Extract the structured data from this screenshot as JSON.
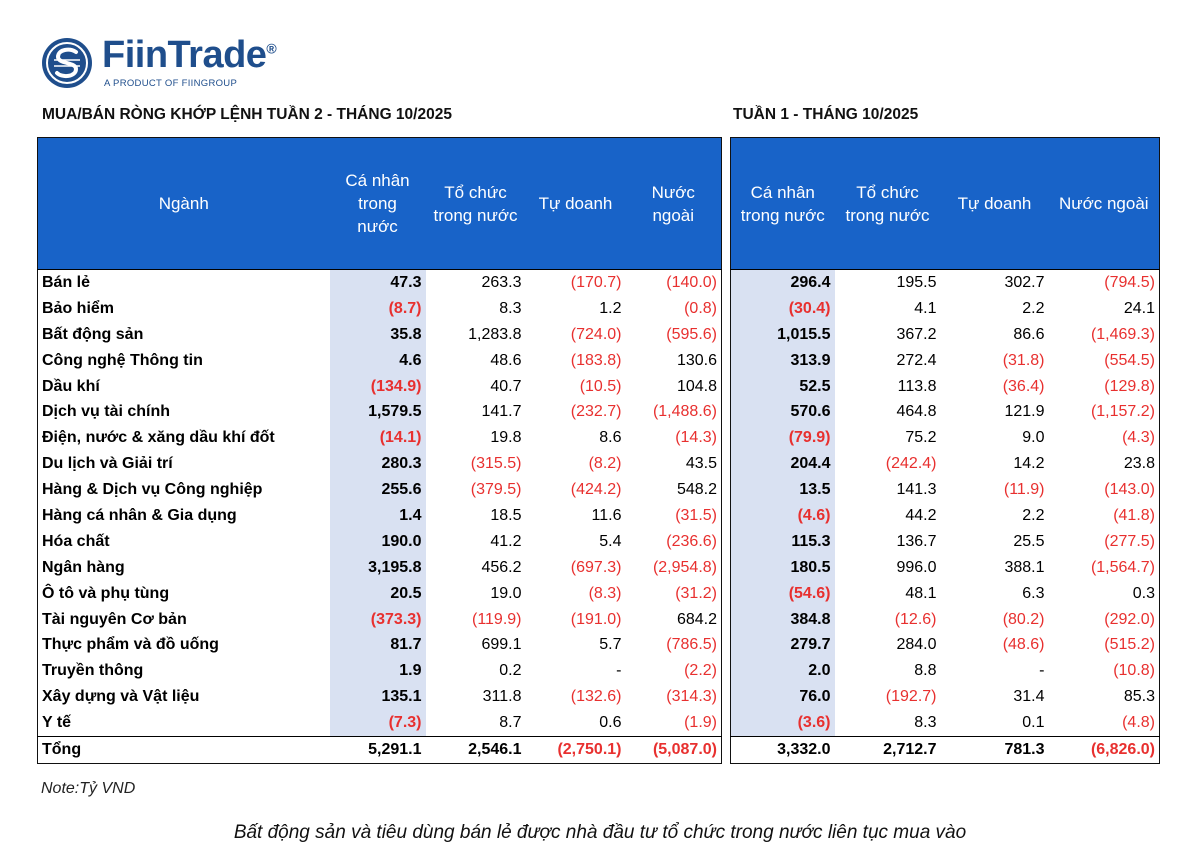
{
  "logo": {
    "name": "FiinTrade",
    "reg": "®",
    "sub": "A PRODUCT OF FIINGROUP",
    "brand_color": "#1f4e8c"
  },
  "left_title": "MUA/BÁN RÒNG KHỚP LỆNH TUẦN 2 - THÁNG 10/2025",
  "right_title": "TUẦN 1 - THÁNG 10/2025",
  "colors": {
    "header_blue": "#1863c8",
    "highlight": "#d9e1f2",
    "negative": "#e8302f"
  },
  "left_headers": [
    "Ngành",
    "Cá nhân\ntrong\nnước",
    "Tổ chức\ntrong nước",
    "Tự doanh",
    "Nước\nngoài"
  ],
  "right_headers": [
    "Cá nhân\ntrong nước",
    "Tổ chức\ntrong nước",
    "Tự doanh",
    "Nước ngoài"
  ],
  "rows": [
    {
      "sector": "Bán lẻ",
      "w2": [
        "47.3",
        "263.3",
        "(170.7)",
        "(140.0)"
      ],
      "w1": [
        "296.4",
        "195.5",
        "302.7",
        "(794.5)"
      ]
    },
    {
      "sector": "Bảo hiểm",
      "w2": [
        "(8.7)",
        "8.3",
        "1.2",
        "(0.8)"
      ],
      "w1": [
        "(30.4)",
        "4.1",
        "2.2",
        "24.1"
      ]
    },
    {
      "sector": "Bất động sản",
      "w2": [
        "35.8",
        "1,283.8",
        "(724.0)",
        "(595.6)"
      ],
      "w1": [
        "1,015.5",
        "367.2",
        "86.6",
        "(1,469.3)"
      ]
    },
    {
      "sector": "Công nghệ Thông tin",
      "w2": [
        "4.6",
        "48.6",
        "(183.8)",
        "130.6"
      ],
      "w1": [
        "313.9",
        "272.4",
        "(31.8)",
        "(554.5)"
      ]
    },
    {
      "sector": "Dầu khí",
      "w2": [
        "(134.9)",
        "40.7",
        "(10.5)",
        "104.8"
      ],
      "w1": [
        "52.5",
        "113.8",
        "(36.4)",
        "(129.8)"
      ]
    },
    {
      "sector": "Dịch vụ tài chính",
      "w2": [
        "1,579.5",
        "141.7",
        "(232.7)",
        "(1,488.6)"
      ],
      "w1": [
        "570.6",
        "464.8",
        "121.9",
        "(1,157.2)"
      ]
    },
    {
      "sector": "Điện, nước & xăng dầu khí đốt",
      "w2": [
        "(14.1)",
        "19.8",
        "8.6",
        "(14.3)"
      ],
      "w1": [
        "(79.9)",
        "75.2",
        "9.0",
        "(4.3)"
      ]
    },
    {
      "sector": "Du lịch và Giải trí",
      "w2": [
        "280.3",
        "(315.5)",
        "(8.2)",
        "43.5"
      ],
      "w1": [
        "204.4",
        "(242.4)",
        "14.2",
        "23.8"
      ]
    },
    {
      "sector": "Hàng & Dịch vụ Công nghiệp",
      "w2": [
        "255.6",
        "(379.5)",
        "(424.2)",
        "548.2"
      ],
      "w1": [
        "13.5",
        "141.3",
        "(11.9)",
        "(143.0)"
      ]
    },
    {
      "sector": "Hàng cá nhân & Gia dụng",
      "w2": [
        "1.4",
        "18.5",
        "11.6",
        "(31.5)"
      ],
      "w1": [
        "(4.6)",
        "44.2",
        "2.2",
        "(41.8)"
      ]
    },
    {
      "sector": "Hóa chất",
      "w2": [
        "190.0",
        "41.2",
        "5.4",
        "(236.6)"
      ],
      "w1": [
        "115.3",
        "136.7",
        "25.5",
        "(277.5)"
      ]
    },
    {
      "sector": "Ngân hàng",
      "w2": [
        "3,195.8",
        "456.2",
        "(697.3)",
        "(2,954.8)"
      ],
      "w1": [
        "180.5",
        "996.0",
        "388.1",
        "(1,564.7)"
      ]
    },
    {
      "sector": "Ô tô và phụ tùng",
      "w2": [
        "20.5",
        "19.0",
        "(8.3)",
        "(31.2)"
      ],
      "w1": [
        "(54.6)",
        "48.1",
        "6.3",
        "0.3"
      ]
    },
    {
      "sector": "Tài nguyên Cơ bản",
      "w2": [
        "(373.3)",
        "(119.9)",
        "(191.0)",
        "684.2"
      ],
      "w1": [
        "384.8",
        "(12.6)",
        "(80.2)",
        "(292.0)"
      ]
    },
    {
      "sector": "Thực phẩm và đồ uống",
      "w2": [
        "81.7",
        "699.1",
        "5.7",
        "(786.5)"
      ],
      "w1": [
        "279.7",
        "284.0",
        "(48.6)",
        "(515.2)"
      ]
    },
    {
      "sector": "Truyền thông",
      "w2": [
        "1.9",
        "0.2",
        "-",
        "(2.2)"
      ],
      "w1": [
        "2.0",
        "8.8",
        "-",
        "(10.8)"
      ]
    },
    {
      "sector": "Xây dựng và Vật liệu",
      "w2": [
        "135.1",
        "311.8",
        "(132.6)",
        "(314.3)"
      ],
      "w1": [
        "76.0",
        "(192.7)",
        "31.4",
        "85.3"
      ]
    },
    {
      "sector": "Y tế",
      "w2": [
        "(7.3)",
        "8.7",
        "0.6",
        "(1.9)"
      ],
      "w1": [
        "(3.6)",
        "8.3",
        "0.1",
        "(4.8)"
      ]
    }
  ],
  "total": {
    "label": "Tổng",
    "w2": [
      "5,291.1",
      "2,546.1",
      "(2,750.1)",
      "(5,087.0)"
    ],
    "w1": [
      "3,332.0",
      "2,712.7",
      "781.3",
      "(6,826.0)"
    ]
  },
  "note": "Note:Tỷ VND",
  "caption": "Bất động sản và tiêu dùng bán lẻ được nhà đầu tư tổ chức trong nước liên tục mua vào"
}
